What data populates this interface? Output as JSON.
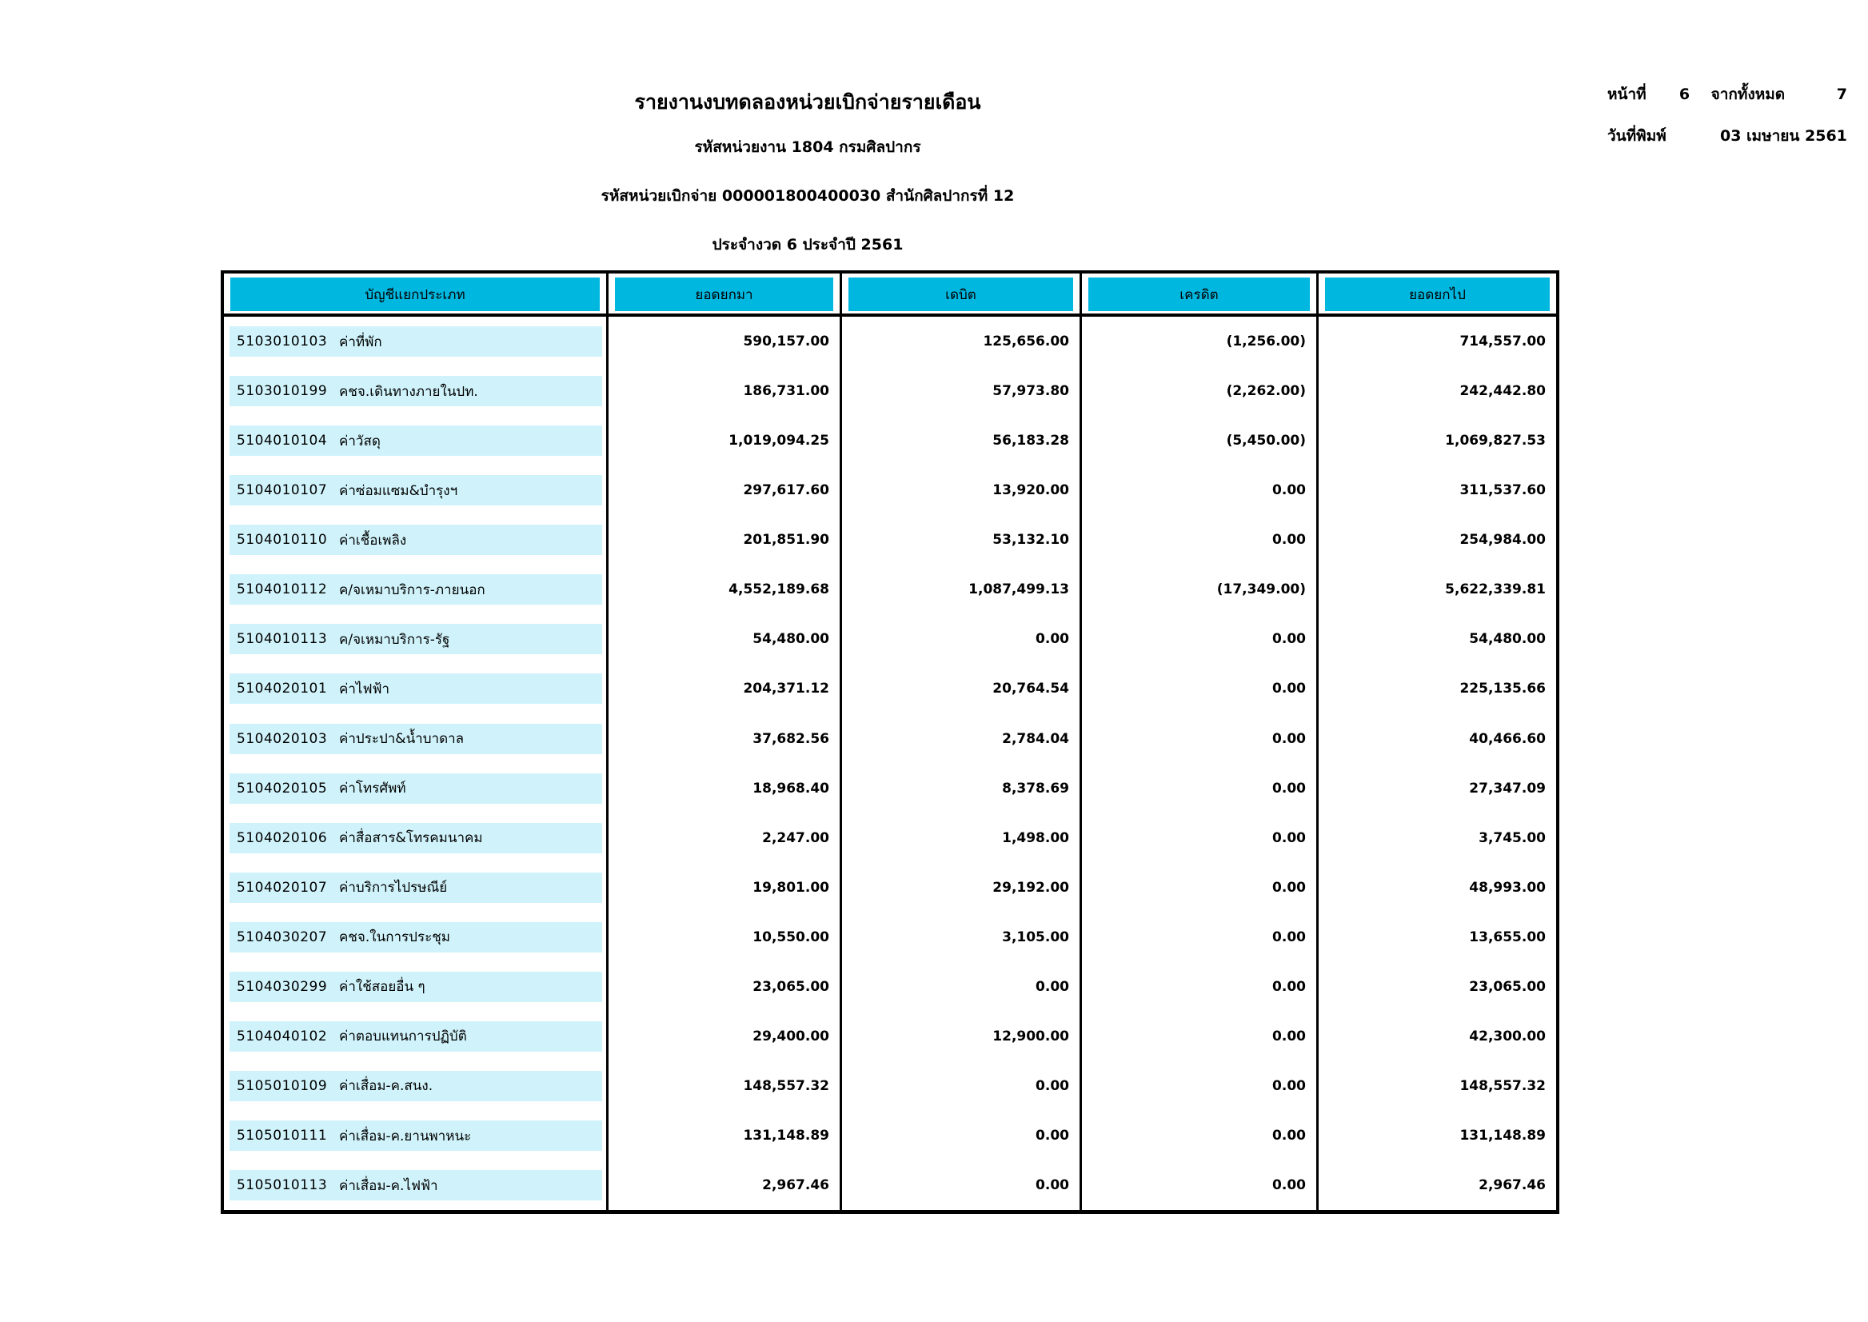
{
  "page_info": {
    "page_label": "หน้าที่",
    "page_number": "6",
    "total_label": "จากทั้งหมด",
    "total_pages": "7",
    "print_date_label": "วันที่พิมพ์",
    "print_date": "03 เมษายน 2561"
  },
  "report_header": {
    "title": "รายงานงบทดลองหน่วยเบิกจ่ายรายเดือน",
    "agency_line": "รหัสหน่วยงาน 1804 กรมศิลปากร",
    "disbursement_line": "รหัสหน่วยเบิกจ่าย 000001800400030 สำนักศิลปากรที่ 12",
    "period_line": "ประจำงวด 6 ประจำปี 2561"
  },
  "table": {
    "columns": [
      "บัญชีแยกประเภท",
      "ยอดยกมา",
      "เดบิต",
      "เครดิต",
      "ยอดยกไป"
    ],
    "rows": [
      {
        "code": "5103010103",
        "name": "ค่าที่พัก",
        "carry_forward": "590,157.00",
        "debit": "125,656.00",
        "credit": "(1,256.00)",
        "carry_over": "714,557.00"
      },
      {
        "code": "5103010199",
        "name": "คชจ.เดินทางภายในปท.",
        "carry_forward": "186,731.00",
        "debit": "57,973.80",
        "credit": "(2,262.00)",
        "carry_over": "242,442.80"
      },
      {
        "code": "5104010104",
        "name": "ค่าวัสดุ",
        "carry_forward": "1,019,094.25",
        "debit": "56,183.28",
        "credit": "(5,450.00)",
        "carry_over": "1,069,827.53"
      },
      {
        "code": "5104010107",
        "name": "ค่าซ่อมแซม&บำรุงฯ",
        "carry_forward": "297,617.60",
        "debit": "13,920.00",
        "credit": "0.00",
        "carry_over": "311,537.60"
      },
      {
        "code": "5104010110",
        "name": "ค่าเชื้อเพลิง",
        "carry_forward": "201,851.90",
        "debit": "53,132.10",
        "credit": "0.00",
        "carry_over": "254,984.00"
      },
      {
        "code": "5104010112",
        "name": "ค/จเหมาบริการ-ภายนอก",
        "carry_forward": "4,552,189.68",
        "debit": "1,087,499.13",
        "credit": "(17,349.00)",
        "carry_over": "5,622,339.81"
      },
      {
        "code": "5104010113",
        "name": "ค/จเหมาบริการ-รัฐ",
        "carry_forward": "54,480.00",
        "debit": "0.00",
        "credit": "0.00",
        "carry_over": "54,480.00"
      },
      {
        "code": "5104020101",
        "name": "ค่าไฟฟ้า",
        "carry_forward": "204,371.12",
        "debit": "20,764.54",
        "credit": "0.00",
        "carry_over": "225,135.66"
      },
      {
        "code": "5104020103",
        "name": "ค่าประปา&น้ำบาดาล",
        "carry_forward": "37,682.56",
        "debit": "2,784.04",
        "credit": "0.00",
        "carry_over": "40,466.60"
      },
      {
        "code": "5104020105",
        "name": "ค่าโทรศัพท์",
        "carry_forward": "18,968.40",
        "debit": "8,378.69",
        "credit": "0.00",
        "carry_over": "27,347.09"
      },
      {
        "code": "5104020106",
        "name": "ค่าสื่อสาร&โทรคมนาคม",
        "carry_forward": "2,247.00",
        "debit": "1,498.00",
        "credit": "0.00",
        "carry_over": "3,745.00"
      },
      {
        "code": "5104020107",
        "name": "ค่าบริการไปรษณีย์",
        "carry_forward": "19,801.00",
        "debit": "29,192.00",
        "credit": "0.00",
        "carry_over": "48,993.00"
      },
      {
        "code": "5104030207",
        "name": "คชจ.ในการประชุม",
        "carry_forward": "10,550.00",
        "debit": "3,105.00",
        "credit": "0.00",
        "carry_over": "13,655.00"
      },
      {
        "code": "5104030299",
        "name": "ค่าใช้สอยอื่น ๆ",
        "carry_forward": "23,065.00",
        "debit": "0.00",
        "credit": "0.00",
        "carry_over": "23,065.00"
      },
      {
        "code": "5104040102",
        "name": "ค่าตอบแทนการปฏิบัติ",
        "carry_forward": "29,400.00",
        "debit": "12,900.00",
        "credit": "0.00",
        "carry_over": "42,300.00"
      },
      {
        "code": "5105010109",
        "name": "ค่าเสื่อม-ค.สนง.",
        "carry_forward": "148,557.32",
        "debit": "0.00",
        "credit": "0.00",
        "carry_over": "148,557.32"
      },
      {
        "code": "5105010111",
        "name": "ค่าเสื่อม-ค.ยานพาหนะ",
        "carry_forward": "131,148.89",
        "debit": "0.00",
        "credit": "0.00",
        "carry_over": "131,148.89"
      },
      {
        "code": "5105010113",
        "name": "ค่าเสื่อม-ค.ไฟฟ้า",
        "carry_forward": "2,967.46",
        "debit": "0.00",
        "credit": "0.00",
        "carry_over": "2,967.46"
      }
    ]
  },
  "colors": {
    "header_cyan": "#00B7E0",
    "row_highlight": "#D0F3FB"
  }
}
